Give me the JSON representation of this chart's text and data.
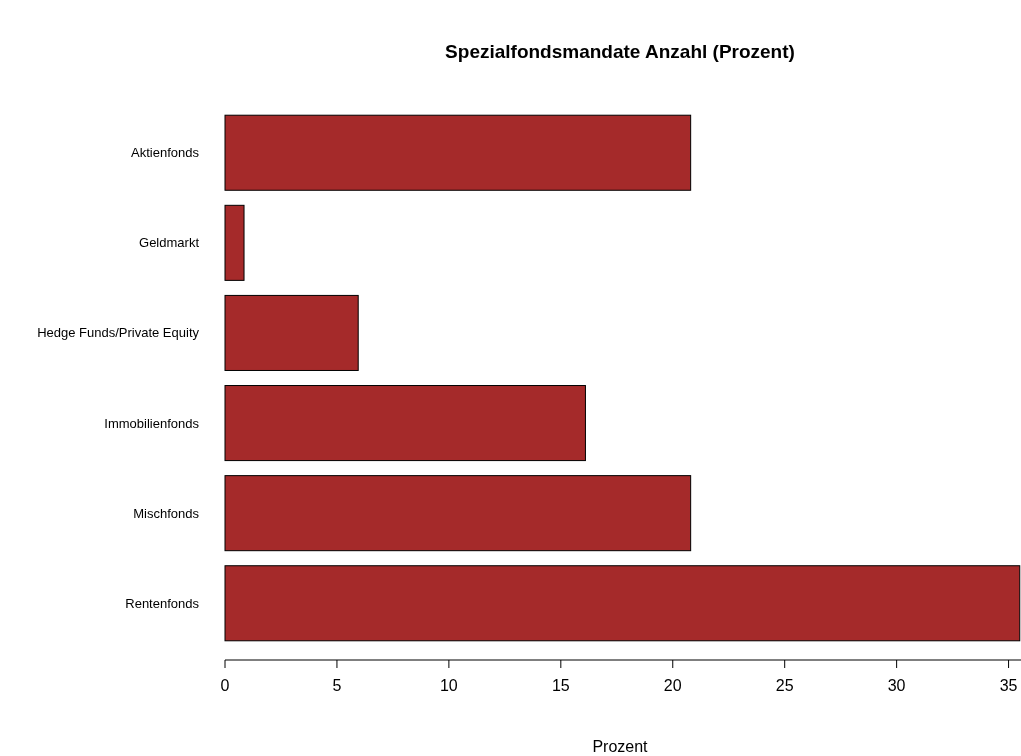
{
  "chart_data": {
    "type": "bar",
    "orientation": "horizontal",
    "title": "Spezialfondsmandate Anzahl (Prozent)",
    "xlabel": "Prozent",
    "categories": [
      "Aktienfonds",
      "Geldmarkt",
      "Hedge Funds/Private Equity",
      "Immobilienfonds",
      "Mischfonds",
      "Rentenfonds"
    ],
    "values": [
      20.8,
      0.85,
      5.95,
      16.1,
      20.8,
      35.5
    ],
    "color": "#a52a2a",
    "xlim": [
      0,
      35.6
    ],
    "xticks": [
      0,
      5,
      10,
      15,
      20,
      25,
      30,
      35
    ]
  }
}
